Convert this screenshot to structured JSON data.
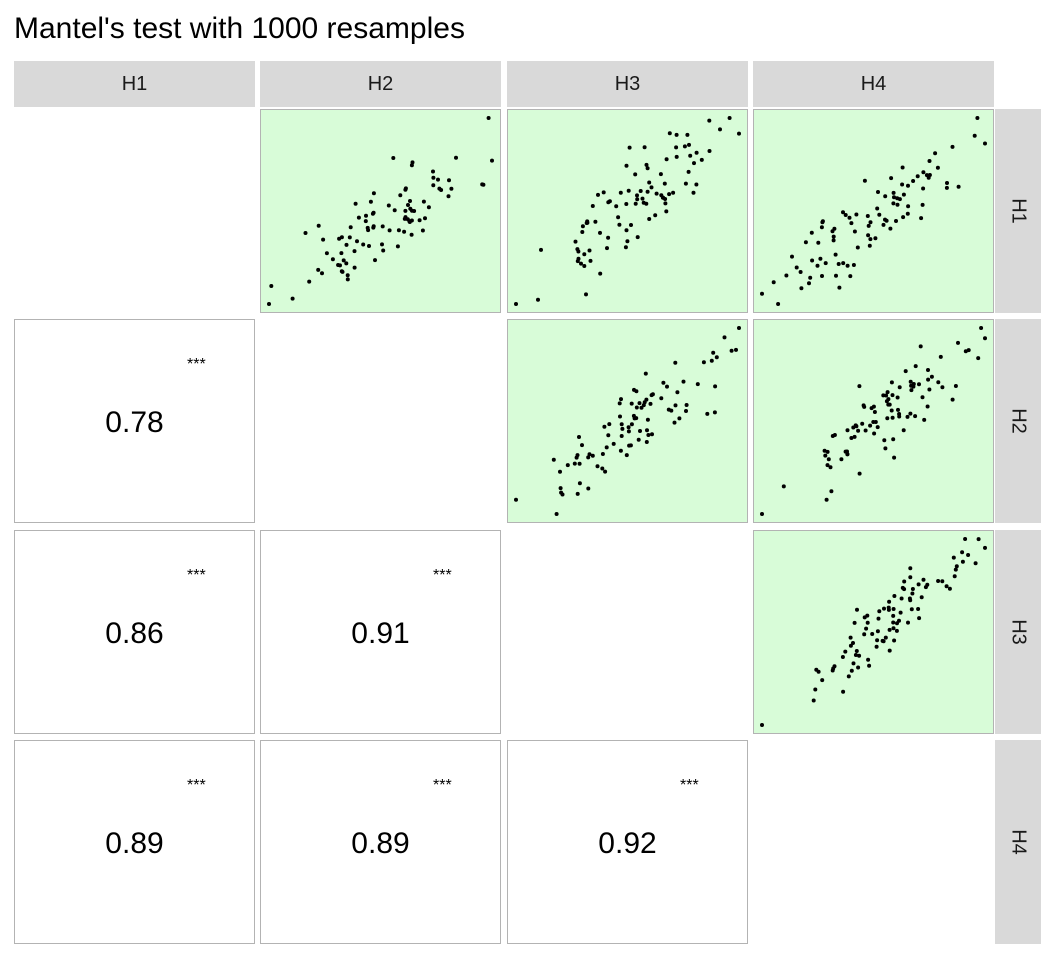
{
  "title": "Mantel's test with 1000 resamples",
  "variables": [
    "H1",
    "H2",
    "H3",
    "H4"
  ],
  "colors": {
    "upper_panel_bg": "#d8fcd8",
    "strip_bg": "#d9d9d9",
    "point": "#000000",
    "panel_border": "#b3b3b3"
  },
  "chart_data": {
    "type": "scatter",
    "title": "Mantel's test with 1000 resamples",
    "variables": [
      "H1",
      "H2",
      "H3",
      "H4"
    ],
    "n_resamples": 1000,
    "correlations": [
      {
        "row": "H2",
        "col": "H1",
        "r": "0.78",
        "significance": "***"
      },
      {
        "row": "H3",
        "col": "H1",
        "r": "0.86",
        "significance": "***"
      },
      {
        "row": "H3",
        "col": "H2",
        "r": "0.91",
        "significance": "***"
      },
      {
        "row": "H4",
        "col": "H1",
        "r": "0.89",
        "significance": "***"
      },
      {
        "row": "H4",
        "col": "H2",
        "r": "0.89",
        "significance": "***"
      },
      {
        "row": "H4",
        "col": "H3",
        "r": "0.92",
        "significance": "***"
      }
    ],
    "scatter_panels": [
      {
        "row": "H1",
        "col": "H2",
        "x_var": "H2",
        "y_var": "H1",
        "n_points": 90,
        "r": 0.78,
        "seed": 11
      },
      {
        "row": "H1",
        "col": "H3",
        "x_var": "H3",
        "y_var": "H1",
        "n_points": 90,
        "r": 0.86,
        "seed": 23
      },
      {
        "row": "H1",
        "col": "H4",
        "x_var": "H4",
        "y_var": "H1",
        "n_points": 90,
        "r": 0.89,
        "seed": 37
      },
      {
        "row": "H2",
        "col": "H3",
        "x_var": "H3",
        "y_var": "H2",
        "n_points": 90,
        "r": 0.91,
        "seed": 41
      },
      {
        "row": "H2",
        "col": "H4",
        "x_var": "H4",
        "y_var": "H2",
        "n_points": 90,
        "r": 0.89,
        "seed": 53
      },
      {
        "row": "H3",
        "col": "H4",
        "x_var": "H4",
        "y_var": "H3",
        "n_points": 90,
        "r": 0.92,
        "seed": 67
      }
    ],
    "axes": "none",
    "grid": false,
    "legend": "none"
  }
}
